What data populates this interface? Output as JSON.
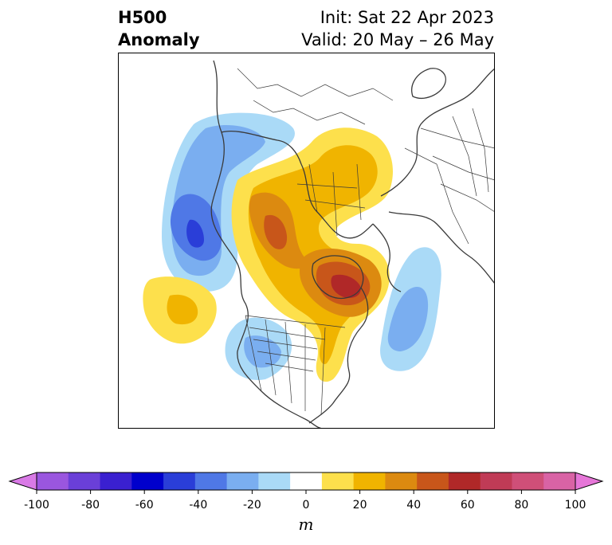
{
  "header": {
    "title_line1": "H500",
    "title_line2": "Anomaly",
    "init": "Init: Sat 22 Apr 2023",
    "valid": "Valid: 20 May – 26 May"
  },
  "colorbar": {
    "ticks": [
      "-100",
      "-80",
      "-60",
      "-40",
      "-20",
      "0",
      "20",
      "40",
      "60",
      "80",
      "100"
    ],
    "colors": [
      "#d97ae6",
      "#9a56df",
      "#6a3fd8",
      "#3a20d0",
      "#0000cc",
      "#2a3ed8",
      "#4f78e6",
      "#7aaef0",
      "#aadaf7",
      "#ffffff",
      "#fde04c",
      "#f0b400",
      "#dc8a10",
      "#c8561a",
      "#b02828",
      "#c03b56",
      "#cf4f78",
      "#d963a5",
      "#e676d8"
    ],
    "units": "m"
  },
  "map": {
    "anomaly_features": [
      {
        "name": "positive-anomaly-hudson-bay",
        "sign": "positive",
        "peak_m": 60
      },
      {
        "name": "positive-anomaly-siberia-arctic",
        "sign": "positive",
        "peak_m": 40
      },
      {
        "name": "positive-anomaly-north-pacific",
        "sign": "positive",
        "peak_m": 30
      },
      {
        "name": "negative-anomaly-bering-sea",
        "sign": "negative",
        "peak_m": -50
      },
      {
        "name": "negative-anomaly-western-us",
        "sign": "negative",
        "peak_m": -30
      },
      {
        "name": "negative-anomaly-north-atlantic",
        "sign": "negative",
        "peak_m": -30
      }
    ]
  }
}
